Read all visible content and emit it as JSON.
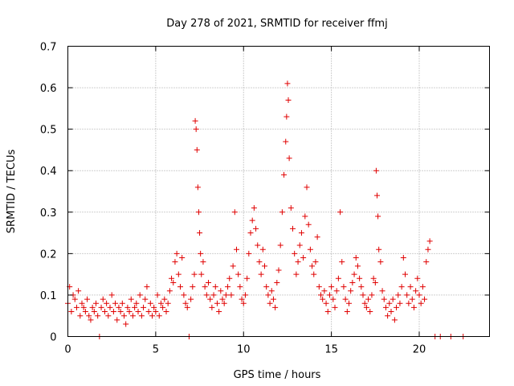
{
  "chart_data": {
    "type": "scatter",
    "title": "Day 278 of 2021, SRMTID for receiver ffmj",
    "xlabel": "GPS time / hours",
    "ylabel": "SRMTID / TECUs",
    "xlim": [
      0,
      24
    ],
    "ylim": [
      0,
      0.7
    ],
    "xticks": [
      0,
      5,
      10,
      15,
      20
    ],
    "yticks": [
      0,
      0.1,
      0.2,
      0.3,
      0.4,
      0.5,
      0.6,
      0.7
    ],
    "xtick_labels": [
      "0",
      "5",
      "10",
      "15",
      "20"
    ],
    "ytick_labels": [
      "0",
      "0.1",
      "0.2",
      "0.3",
      "0.4",
      "0.5",
      "0.6",
      "0.7"
    ],
    "grid": true,
    "marker": "+",
    "marker_color": "#e00000",
    "series": [
      {
        "name": "SRMTID",
        "points": [
          [
            0.0,
            0.08
          ],
          [
            0.1,
            0.12
          ],
          [
            0.2,
            0.06
          ],
          [
            0.3,
            0.1
          ],
          [
            0.4,
            0.09
          ],
          [
            0.5,
            0.07
          ],
          [
            0.6,
            0.11
          ],
          [
            0.7,
            0.05
          ],
          [
            0.8,
            0.08
          ],
          [
            0.9,
            0.07
          ],
          [
            1.0,
            0.06
          ],
          [
            1.1,
            0.09
          ],
          [
            1.2,
            0.05
          ],
          [
            1.3,
            0.04
          ],
          [
            1.4,
            0.07
          ],
          [
            1.5,
            0.06
          ],
          [
            1.6,
            0.08
          ],
          [
            1.7,
            0.05
          ],
          [
            1.8,
            0.0
          ],
          [
            1.9,
            0.07
          ],
          [
            2.0,
            0.09
          ],
          [
            2.1,
            0.06
          ],
          [
            2.2,
            0.08
          ],
          [
            2.3,
            0.05
          ],
          [
            2.4,
            0.07
          ],
          [
            2.5,
            0.1
          ],
          [
            2.6,
            0.06
          ],
          [
            2.7,
            0.08
          ],
          [
            2.8,
            0.04
          ],
          [
            2.9,
            0.07
          ],
          [
            3.0,
            0.06
          ],
          [
            3.1,
            0.08
          ],
          [
            3.2,
            0.05
          ],
          [
            3.3,
            0.03
          ],
          [
            3.4,
            0.07
          ],
          [
            3.5,
            0.06
          ],
          [
            3.6,
            0.09
          ],
          [
            3.7,
            0.05
          ],
          [
            3.8,
            0.07
          ],
          [
            3.9,
            0.08
          ],
          [
            4.0,
            0.06
          ],
          [
            4.1,
            0.1
          ],
          [
            4.2,
            0.05
          ],
          [
            4.3,
            0.07
          ],
          [
            4.4,
            0.09
          ],
          [
            4.5,
            0.12
          ],
          [
            4.6,
            0.06
          ],
          [
            4.7,
            0.08
          ],
          [
            4.8,
            0.05
          ],
          [
            4.9,
            0.07
          ],
          [
            5.0,
            0.06
          ],
          [
            5.1,
            0.1
          ],
          [
            5.2,
            0.05
          ],
          [
            5.3,
            0.08
          ],
          [
            5.4,
            0.07
          ],
          [
            5.5,
            0.09
          ],
          [
            5.6,
            0.06
          ],
          [
            5.7,
            0.08
          ],
          [
            5.8,
            0.11
          ],
          [
            5.9,
            0.14
          ],
          [
            6.0,
            0.13
          ],
          [
            6.1,
            0.18
          ],
          [
            6.2,
            0.2
          ],
          [
            6.3,
            0.15
          ],
          [
            6.4,
            0.12
          ],
          [
            6.5,
            0.19
          ],
          [
            6.6,
            0.1
          ],
          [
            6.7,
            0.08
          ],
          [
            6.8,
            0.07
          ],
          [
            6.9,
            0.0
          ],
          [
            7.0,
            0.09
          ],
          [
            7.1,
            0.12
          ],
          [
            7.2,
            0.15
          ],
          [
            7.25,
            0.52
          ],
          [
            7.3,
            0.5
          ],
          [
            7.35,
            0.45
          ],
          [
            7.4,
            0.36
          ],
          [
            7.45,
            0.3
          ],
          [
            7.5,
            0.25
          ],
          [
            7.55,
            0.2
          ],
          [
            7.6,
            0.15
          ],
          [
            7.7,
            0.18
          ],
          [
            7.8,
            0.12
          ],
          [
            7.9,
            0.1
          ],
          [
            8.0,
            0.13
          ],
          [
            8.1,
            0.09
          ],
          [
            8.2,
            0.07
          ],
          [
            8.3,
            0.1
          ],
          [
            8.4,
            0.12
          ],
          [
            8.5,
            0.08
          ],
          [
            8.6,
            0.06
          ],
          [
            8.7,
            0.11
          ],
          [
            8.8,
            0.09
          ],
          [
            8.9,
            0.08
          ],
          [
            9.0,
            0.1
          ],
          [
            9.1,
            0.12
          ],
          [
            9.2,
            0.14
          ],
          [
            9.3,
            0.1
          ],
          [
            9.4,
            0.17
          ],
          [
            9.5,
            0.3
          ],
          [
            9.6,
            0.21
          ],
          [
            9.7,
            0.15
          ],
          [
            9.8,
            0.12
          ],
          [
            9.9,
            0.09
          ],
          [
            10.0,
            0.08
          ],
          [
            10.1,
            0.1
          ],
          [
            10.2,
            0.14
          ],
          [
            10.3,
            0.2
          ],
          [
            10.4,
            0.25
          ],
          [
            10.5,
            0.28
          ],
          [
            10.6,
            0.31
          ],
          [
            10.7,
            0.26
          ],
          [
            10.8,
            0.22
          ],
          [
            10.9,
            0.18
          ],
          [
            11.0,
            0.15
          ],
          [
            11.1,
            0.21
          ],
          [
            11.2,
            0.17
          ],
          [
            11.3,
            0.12
          ],
          [
            11.4,
            0.1
          ],
          [
            11.5,
            0.08
          ],
          [
            11.6,
            0.11
          ],
          [
            11.7,
            0.09
          ],
          [
            11.8,
            0.07
          ],
          [
            11.9,
            0.13
          ],
          [
            12.0,
            0.16
          ],
          [
            12.1,
            0.22
          ],
          [
            12.2,
            0.3
          ],
          [
            12.3,
            0.39
          ],
          [
            12.4,
            0.47
          ],
          [
            12.45,
            0.53
          ],
          [
            12.5,
            0.61
          ],
          [
            12.55,
            0.57
          ],
          [
            12.6,
            0.43
          ],
          [
            12.7,
            0.31
          ],
          [
            12.8,
            0.26
          ],
          [
            12.9,
            0.2
          ],
          [
            13.0,
            0.15
          ],
          [
            13.1,
            0.18
          ],
          [
            13.2,
            0.22
          ],
          [
            13.3,
            0.25
          ],
          [
            13.4,
            0.19
          ],
          [
            13.5,
            0.29
          ],
          [
            13.6,
            0.36
          ],
          [
            13.7,
            0.27
          ],
          [
            13.8,
            0.21
          ],
          [
            13.9,
            0.17
          ],
          [
            14.0,
            0.15
          ],
          [
            14.1,
            0.18
          ],
          [
            14.2,
            0.24
          ],
          [
            14.3,
            0.12
          ],
          [
            14.4,
            0.1
          ],
          [
            14.5,
            0.09
          ],
          [
            14.6,
            0.11
          ],
          [
            14.7,
            0.08
          ],
          [
            14.8,
            0.06
          ],
          [
            14.9,
            0.1
          ],
          [
            15.0,
            0.12
          ],
          [
            15.1,
            0.09
          ],
          [
            15.2,
            0.07
          ],
          [
            15.3,
            0.11
          ],
          [
            15.4,
            0.14
          ],
          [
            15.5,
            0.3
          ],
          [
            15.6,
            0.18
          ],
          [
            15.7,
            0.12
          ],
          [
            15.8,
            0.09
          ],
          [
            15.9,
            0.06
          ],
          [
            16.0,
            0.08
          ],
          [
            16.1,
            0.11
          ],
          [
            16.2,
            0.13
          ],
          [
            16.3,
            0.15
          ],
          [
            16.4,
            0.19
          ],
          [
            16.5,
            0.17
          ],
          [
            16.6,
            0.14
          ],
          [
            16.7,
            0.12
          ],
          [
            16.8,
            0.1
          ],
          [
            16.9,
            0.08
          ],
          [
            17.0,
            0.07
          ],
          [
            17.1,
            0.09
          ],
          [
            17.2,
            0.06
          ],
          [
            17.3,
            0.1
          ],
          [
            17.4,
            0.14
          ],
          [
            17.5,
            0.13
          ],
          [
            17.55,
            0.4
          ],
          [
            17.6,
            0.34
          ],
          [
            17.65,
            0.29
          ],
          [
            17.7,
            0.21
          ],
          [
            17.8,
            0.18
          ],
          [
            17.9,
            0.11
          ],
          [
            18.0,
            0.09
          ],
          [
            18.1,
            0.07
          ],
          [
            18.2,
            0.05
          ],
          [
            18.3,
            0.08
          ],
          [
            18.4,
            0.06
          ],
          [
            18.5,
            0.09
          ],
          [
            18.6,
            0.04
          ],
          [
            18.7,
            0.07
          ],
          [
            18.8,
            0.1
          ],
          [
            18.9,
            0.08
          ],
          [
            19.0,
            0.12
          ],
          [
            19.1,
            0.19
          ],
          [
            19.2,
            0.15
          ],
          [
            19.3,
            0.1
          ],
          [
            19.4,
            0.08
          ],
          [
            19.5,
            0.12
          ],
          [
            19.6,
            0.09
          ],
          [
            19.7,
            0.07
          ],
          [
            19.8,
            0.11
          ],
          [
            19.9,
            0.14
          ],
          [
            20.0,
            0.1
          ],
          [
            20.1,
            0.08
          ],
          [
            20.2,
            0.12
          ],
          [
            20.3,
            0.09
          ],
          [
            20.4,
            0.18
          ],
          [
            20.5,
            0.21
          ],
          [
            20.6,
            0.23
          ],
          [
            20.9,
            0.0
          ],
          [
            21.2,
            0.0
          ],
          [
            21.8,
            0.0
          ],
          [
            22.5,
            0.0
          ]
        ]
      }
    ]
  }
}
